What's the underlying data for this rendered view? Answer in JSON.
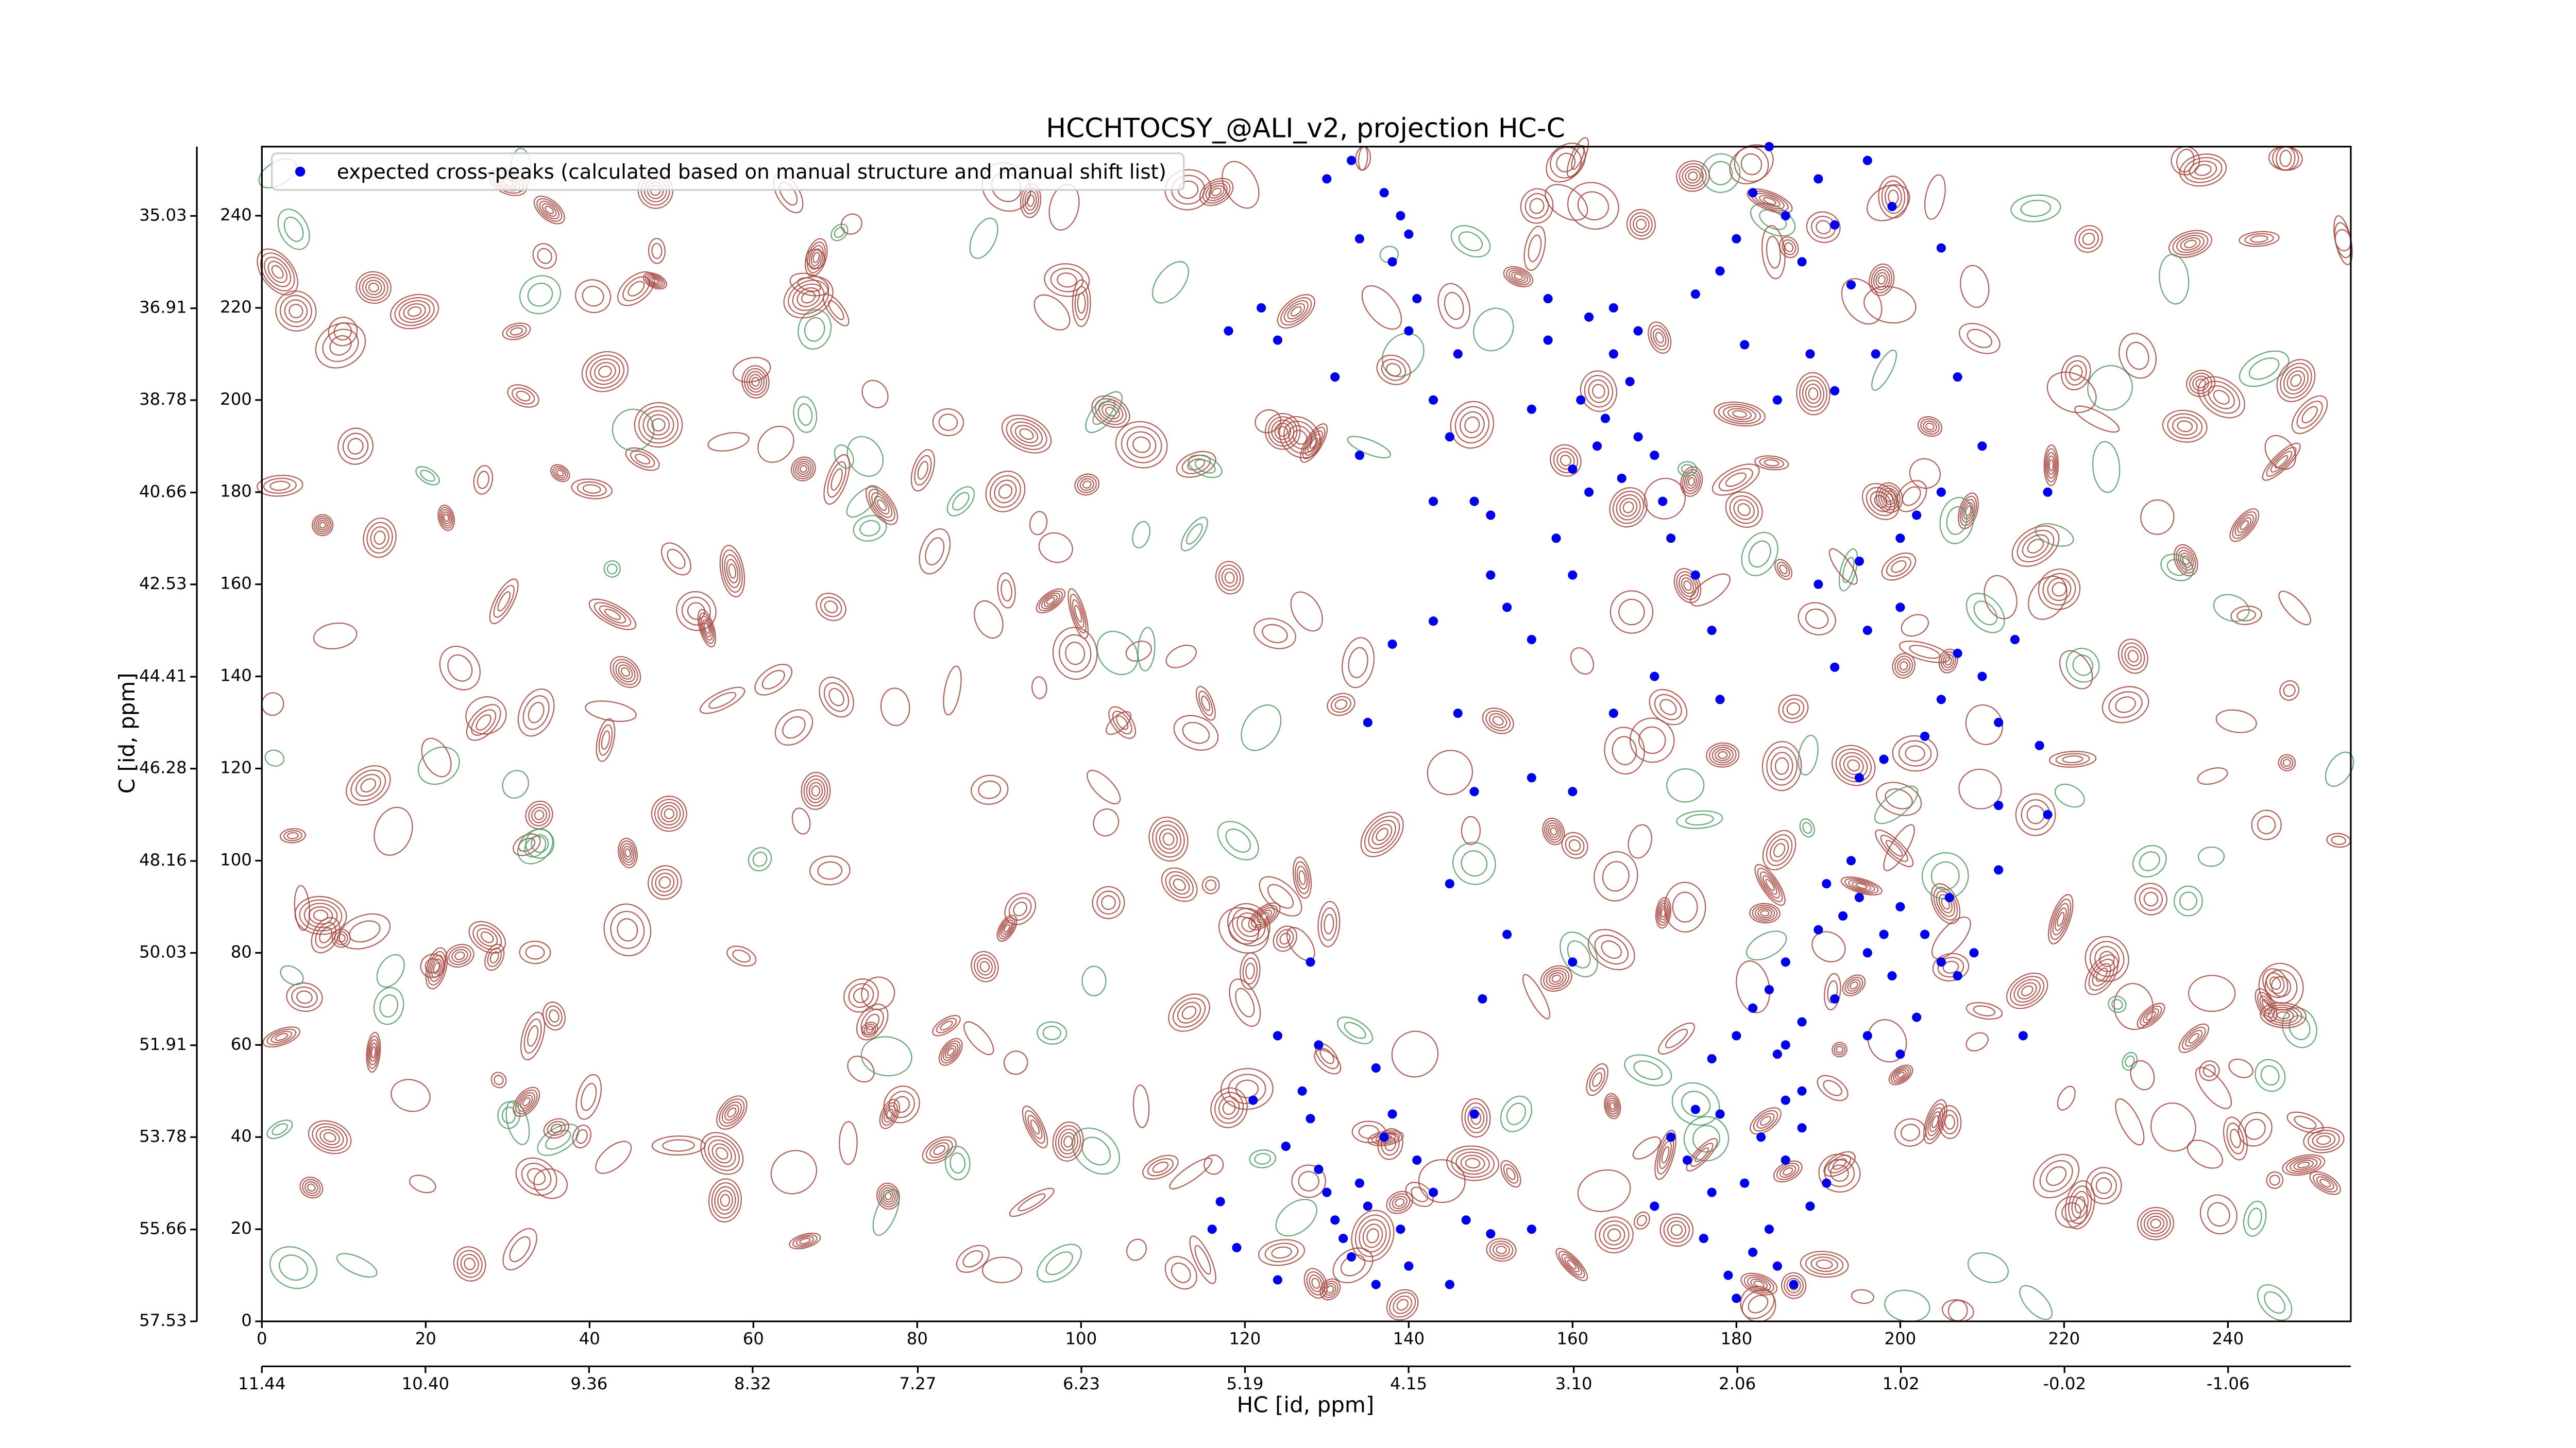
{
  "chart_data": {
    "type": "scatter",
    "title": "HCCHTOCSY_@ALI_v2, projection HC-C",
    "xlabel": "HC [id, ppm]",
    "ylabel": "C [id, ppm]",
    "legend": "upper left",
    "xlim": [
      0,
      255
    ],
    "xticks": [
      0,
      20,
      40,
      60,
      80,
      100,
      120,
      140,
      160,
      180,
      200,
      220,
      240
    ],
    "x2lim": [
      11.44,
      -1.84
    ],
    "x2ticks": [
      11.44,
      {
        "value": 10.4,
        "label": "10.40"
      },
      9.36,
      8.32,
      7.27,
      6.23,
      5.19,
      4.15,
      {
        "value": 3.1,
        "label": "3.10"
      },
      2.06,
      1.02,
      -0.02,
      -1.06
    ],
    "ylim": [
      0,
      255
    ],
    "yticks": [
      0,
      20,
      40,
      60,
      80,
      100,
      120,
      140,
      160,
      180,
      200,
      220,
      240
    ],
    "y2lim": [
      57.53,
      33.62
    ],
    "y2ticks": [
      57.53,
      55.66,
      53.78,
      51.91,
      50.03,
      48.16,
      46.28,
      44.41,
      42.53,
      40.66,
      38.78,
      36.91,
      35.03
    ],
    "series": [
      {
        "name": "expected cross-peaks (calculated based on manual structure and manual shift list)",
        "color": "#0000ee",
        "x": [
          116,
          119,
          124,
          125,
          127,
          128,
          129,
          130,
          131,
          132,
          133,
          134,
          135,
          136,
          137,
          138,
          139,
          140,
          141,
          143,
          121,
          124,
          129,
          136,
          117,
          145,
          147,
          150,
          155,
          148,
          170,
          172,
          174,
          176,
          178,
          179,
          180,
          181,
          182,
          183,
          184,
          185,
          186,
          187,
          188,
          189,
          175,
          177,
          186,
          191,
          177,
          180,
          182,
          184,
          185,
          186,
          188,
          190,
          191,
          192,
          193,
          194,
          195,
          196,
          198,
          199,
          200,
          202,
          203,
          205,
          206,
          207,
          209,
          212,
          188,
          196,
          200,
          215,
          186,
          195,
          198,
          203,
          205,
          207,
          210,
          212,
          217,
          212,
          218,
          150,
          152,
          155,
          158,
          160,
          161,
          162,
          163,
          164,
          165,
          166,
          167,
          168,
          170,
          171,
          162,
          157,
          165,
          168,
          172,
          175,
          177,
          155,
          160,
          157,
          175,
          178,
          180,
          182,
          184,
          186,
          188,
          190,
          192,
          194,
          196,
          181,
          185,
          189,
          192,
          197,
          205,
          207,
          199,
          130,
          133,
          137,
          139,
          140,
          134,
          138,
          141,
          140,
          143,
          146,
          145,
          148,
          150,
          143,
          134,
          131,
          124,
          122,
          118,
          190,
          195,
          200,
          205,
          200,
          196,
          202,
          210,
          218,
          214,
          192,
          178,
          165,
          155,
          160,
          148,
          146,
          135,
          138,
          143,
          170,
          145,
          160,
          152,
          149,
          128
        ],
        "y": [
          20,
          16,
          9,
          38,
          50,
          44,
          33,
          28,
          22,
          18,
          14,
          30,
          25,
          8,
          40,
          45,
          20,
          12,
          35,
          28,
          48,
          62,
          60,
          55,
          26,
          8,
          22,
          19,
          20,
          45,
          25,
          40,
          35,
          18,
          45,
          10,
          5,
          30,
          15,
          40,
          20,
          12,
          35,
          8,
          42,
          25,
          46,
          28,
          48,
          30,
          57,
          62,
          68,
          72,
          58,
          78,
          65,
          85,
          95,
          70,
          88,
          100,
          92,
          80,
          84,
          75,
          90,
          66,
          84,
          78,
          92,
          75,
          80,
          98,
          50,
          62,
          58,
          62,
          60,
          118,
          122,
          127,
          135,
          145,
          140,
          130,
          125,
          112,
          110,
          175,
          155,
          148,
          170,
          185,
          200,
          180,
          190,
          196,
          210,
          183,
          204,
          192,
          188,
          178,
          218,
          222,
          220,
          215,
          170,
          162,
          150,
          198,
          162,
          213,
          223,
          228,
          235,
          245,
          255,
          240,
          230,
          248,
          238,
          225,
          252,
          212,
          200,
          210,
          202,
          210,
          233,
          205,
          242,
          248,
          252,
          245,
          240,
          236,
          235,
          230,
          222,
          215,
          200,
          210,
          192,
          178,
          162,
          178,
          188,
          205,
          213,
          220,
          215,
          160,
          165,
          170,
          180,
          155,
          150,
          175,
          190,
          180,
          148,
          142,
          135,
          132,
          118,
          115,
          115,
          132,
          130,
          147,
          152,
          140,
          95,
          78,
          84,
          70,
          78
        ]
      }
    ]
  }
}
